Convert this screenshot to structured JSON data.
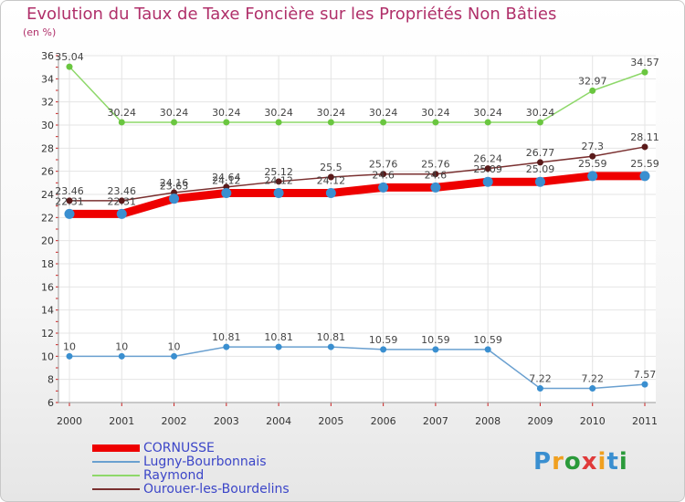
{
  "header": {
    "title": "Evolution du Taux de Taxe Foncière sur les Propriétés Non Bâties",
    "unit": "(en %)"
  },
  "logo": {
    "text": "Proxiti",
    "colors": [
      "#3a8fd0",
      "#f0a020",
      "#2a9a3a",
      "#e03a3a",
      "#f0a020",
      "#3a8fd0",
      "#2a9a3a"
    ]
  },
  "chart_data": {
    "type": "line",
    "title": "Evolution du Taux de Taxe Foncière sur les Propriétés Non Bâties",
    "ylabel": "(en %)",
    "xlabel": "",
    "ylim": [
      6,
      36
    ],
    "yticks": [
      6,
      8,
      10,
      12,
      14,
      16,
      18,
      20,
      22,
      24,
      26,
      28,
      30,
      32,
      34,
      36
    ],
    "categories": [
      "2000",
      "2001",
      "2002",
      "2003",
      "2004",
      "2005",
      "2006",
      "2007",
      "2008",
      "2009",
      "2010",
      "2011"
    ],
    "grid": true,
    "series": [
      {
        "name": "CORNUSSE",
        "color": "#ee0000",
        "marker": "#3a8fd0",
        "values": [
          22.31,
          22.31,
          23.63,
          24.12,
          24.12,
          24.12,
          24.6,
          24.6,
          25.09,
          25.09,
          25.59,
          25.59
        ],
        "labels": [
          "22.31",
          "22.31",
          "23.63",
          "24.12",
          "24.12",
          "24.12",
          "24.6",
          "24.6",
          "25.09",
          "25.09",
          "25.59",
          "25.59"
        ]
      },
      {
        "name": "Lugny-Bourbonnais",
        "color": "#6aa0d0",
        "marker": "#3a8fd0",
        "values": [
          10,
          10,
          10,
          10.81,
          10.81,
          10.81,
          10.59,
          10.59,
          10.59,
          7.22,
          7.22,
          7.57
        ],
        "labels": [
          "10",
          "10",
          "10",
          "10.81",
          "10.81",
          "10.81",
          "10.59",
          "10.59",
          "10.59",
          "7.22",
          "7.22",
          "7.57"
        ]
      },
      {
        "name": "Raymond",
        "color": "#8ed86a",
        "marker": "#6ac640",
        "values": [
          35.04,
          30.24,
          30.24,
          30.24,
          30.24,
          30.24,
          30.24,
          30.24,
          30.24,
          30.24,
          32.97,
          34.57
        ],
        "labels": [
          "35.04",
          "30.24",
          "30.24",
          "30.24",
          "30.24",
          "30.24",
          "30.24",
          "30.24",
          "30.24",
          "30.24",
          "32.97",
          "34.57"
        ]
      },
      {
        "name": "Ourouer-les-Bourdelins",
        "color": "#7a3030",
        "marker": "#5a1a1a",
        "values": [
          23.46,
          23.46,
          24.16,
          24.64,
          25.12,
          25.5,
          25.76,
          25.76,
          26.24,
          26.77,
          27.3,
          28.11
        ],
        "labels": [
          "23.46",
          "23.46",
          "24.16",
          "24.64",
          "25.12",
          "25.5",
          "25.76",
          "25.76",
          "26.24",
          "26.77",
          "27.3",
          "28.11"
        ]
      }
    ]
  }
}
